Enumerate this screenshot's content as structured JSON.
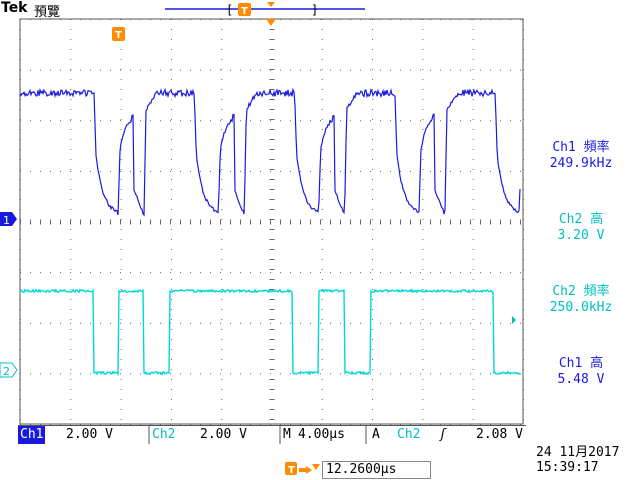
{
  "header": {
    "brand": "Tek",
    "status": "預覽",
    "trigger_marker": "T"
  },
  "channel_markers": {
    "ch1": "1",
    "ch2": "2"
  },
  "measurements": [
    {
      "label": "Ch1 頻率",
      "value": "249.9kHz",
      "channel": "ch1"
    },
    {
      "label": "Ch2 高",
      "value": "3.20 V",
      "channel": "ch2"
    },
    {
      "label": "Ch2 頻率",
      "value": "250.0kHz",
      "channel": "ch2"
    },
    {
      "label": "Ch1 高",
      "value": "5.48 V",
      "channel": "ch1"
    }
  ],
  "bottom": {
    "ch1_label": "Ch1",
    "ch1_scale": "2.00 V",
    "ch2_label": "Ch2",
    "ch2_scale": "2.00 V",
    "timebase_label": "M",
    "timebase": "4.00µs",
    "trigger_mode": "A",
    "trigger_source": "Ch2",
    "trigger_slope": "ʃ",
    "trigger_level": "2.08 V"
  },
  "trigger_position": "12.2600µs",
  "datetime": {
    "date": "24 11月2017",
    "time": "15:39:17"
  },
  "colors": {
    "ch1": "#1a1adf",
    "ch2": "#00bfbf",
    "trigger": "#ff8c00"
  }
}
